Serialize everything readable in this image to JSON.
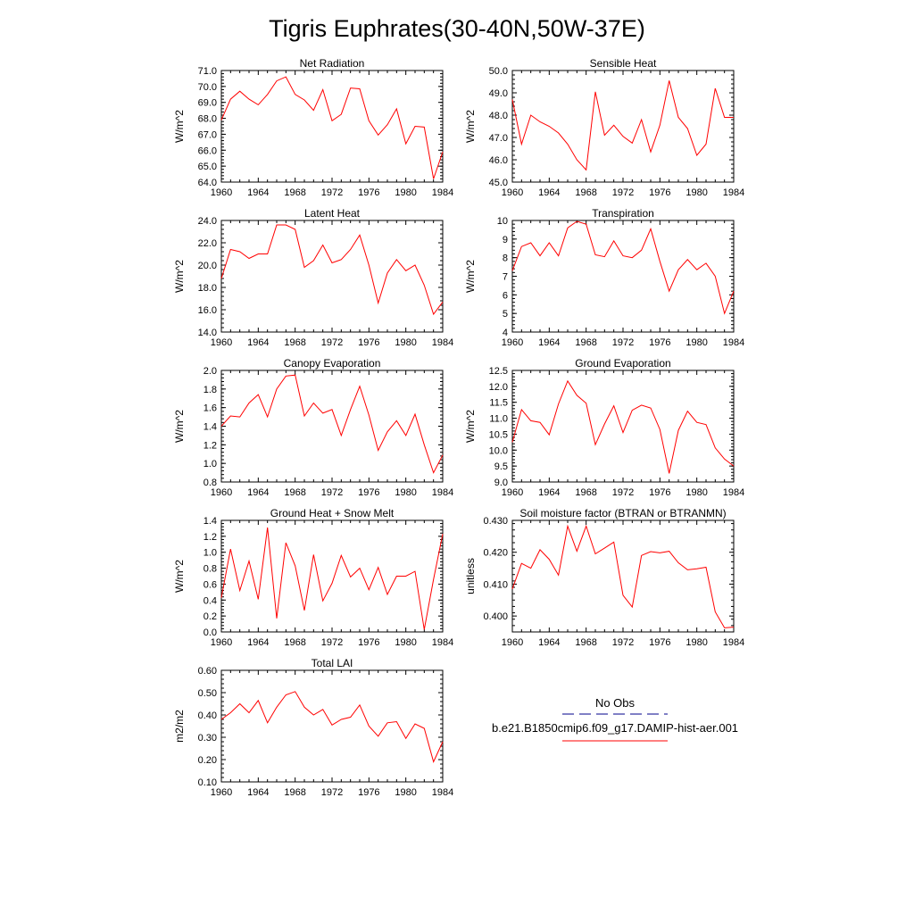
{
  "title": "Tigris Euphrates(30-40N,50W-37E)",
  "colors": {
    "model": "#ff0000",
    "obs": "#00008b",
    "axis": "#000000"
  },
  "legend": {
    "obs_label": "No Obs",
    "model_label": "b.e21.B1850cmip6.f09_g17.DAMIP-hist-aer.001"
  },
  "chart_data": [
    {
      "type": "line",
      "title": "Net Radiation",
      "ylabel": "W/m^2",
      "xlim": [
        1960,
        1984
      ],
      "ylim": [
        64.0,
        71.0
      ],
      "xticks": [
        1960,
        1964,
        1968,
        1972,
        1976,
        1980,
        1984
      ],
      "yticks": [
        "64.0",
        "65.0",
        "66.0",
        "67.0",
        "68.0",
        "69.0",
        "70.0",
        "71.0"
      ],
      "x": [
        1960,
        1961,
        1962,
        1963,
        1964,
        1965,
        1966,
        1967,
        1968,
        1969,
        1970,
        1971,
        1972,
        1973,
        1974,
        1975,
        1976,
        1977,
        1978,
        1979,
        1980,
        1981,
        1982,
        1983,
        1984
      ],
      "values": [
        67.9,
        69.2,
        69.7,
        69.2,
        68.85,
        69.5,
        70.35,
        70.6,
        69.5,
        69.15,
        68.5,
        69.8,
        67.85,
        68.25,
        69.9,
        69.85,
        67.85,
        66.95,
        67.6,
        68.6,
        66.4,
        67.5,
        67.45,
        64.2,
        65.9
      ]
    },
    {
      "type": "line",
      "title": "Sensible Heat",
      "ylabel": "W/m^2",
      "xlim": [
        1960,
        1984
      ],
      "ylim": [
        45.0,
        50.0
      ],
      "xticks": [
        1960,
        1964,
        1968,
        1972,
        1976,
        1980,
        1984
      ],
      "yticks": [
        "45.0",
        "46.0",
        "47.0",
        "48.0",
        "49.0",
        "50.0"
      ],
      "x": [
        1960,
        1961,
        1962,
        1963,
        1964,
        1965,
        1966,
        1967,
        1968,
        1969,
        1970,
        1971,
        1972,
        1973,
        1974,
        1975,
        1976,
        1977,
        1978,
        1979,
        1980,
        1981,
        1982,
        1983,
        1984
      ],
      "values": [
        48.7,
        46.7,
        48.0,
        47.7,
        47.5,
        47.2,
        46.7,
        46.0,
        45.55,
        49.05,
        47.1,
        47.55,
        47.05,
        46.75,
        47.8,
        46.35,
        47.55,
        49.55,
        47.9,
        47.4,
        46.2,
        46.7,
        49.2,
        47.9,
        47.9
      ]
    },
    {
      "type": "line",
      "title": "Latent Heat",
      "ylabel": "W/m^2",
      "xlim": [
        1960,
        1984
      ],
      "ylim": [
        14.0,
        24.0
      ],
      "xticks": [
        1960,
        1964,
        1968,
        1972,
        1976,
        1980,
        1984
      ],
      "yticks": [
        "14.0",
        "16.0",
        "18.0",
        "20.0",
        "22.0",
        "24.0"
      ],
      "x": [
        1960,
        1961,
        1962,
        1963,
        1964,
        1965,
        1966,
        1967,
        1968,
        1969,
        1970,
        1971,
        1972,
        1973,
        1974,
        1975,
        1976,
        1977,
        1978,
        1979,
        1980,
        1981,
        1982,
        1983,
        1984
      ],
      "values": [
        18.8,
        21.4,
        21.2,
        20.6,
        21.0,
        21.0,
        23.6,
        23.6,
        23.2,
        19.8,
        20.4,
        21.8,
        20.2,
        20.5,
        21.4,
        22.7,
        20.0,
        16.6,
        19.3,
        20.5,
        19.5,
        20.0,
        18.2,
        15.6,
        16.7
      ]
    },
    {
      "type": "line",
      "title": "Transpiration",
      "ylabel": "W/m^2",
      "xlim": [
        1960,
        1984
      ],
      "ylim": [
        4,
        10
      ],
      "xticks": [
        1960,
        1964,
        1968,
        1972,
        1976,
        1980,
        1984
      ],
      "yticks": [
        "4",
        "5",
        "6",
        "7",
        "8",
        "9",
        "10"
      ],
      "x": [
        1960,
        1961,
        1962,
        1963,
        1964,
        1965,
        1966,
        1967,
        1968,
        1969,
        1970,
        1971,
        1972,
        1973,
        1974,
        1975,
        1976,
        1977,
        1978,
        1979,
        1980,
        1981,
        1982,
        1983,
        1984
      ],
      "values": [
        7.3,
        8.6,
        8.8,
        8.1,
        8.8,
        8.1,
        9.6,
        9.95,
        9.8,
        8.15,
        8.05,
        8.9,
        8.1,
        8.0,
        8.4,
        9.55,
        7.8,
        6.2,
        7.35,
        7.9,
        7.35,
        7.7,
        7.0,
        5.0,
        6.2
      ]
    },
    {
      "type": "line",
      "title": "Canopy Evaporation",
      "ylabel": "W/m^2",
      "xlim": [
        1960,
        1984
      ],
      "ylim": [
        0.8,
        2.0
      ],
      "xticks": [
        1960,
        1964,
        1968,
        1972,
        1976,
        1980,
        1984
      ],
      "yticks": [
        "0.8",
        "1.0",
        "1.2",
        "1.4",
        "1.6",
        "1.8",
        "2.0"
      ],
      "x": [
        1960,
        1961,
        1962,
        1963,
        1964,
        1965,
        1966,
        1967,
        1968,
        1969,
        1970,
        1971,
        1972,
        1973,
        1974,
        1975,
        1976,
        1977,
        1978,
        1979,
        1980,
        1981,
        1982,
        1983,
        1984
      ],
      "values": [
        1.4,
        1.51,
        1.5,
        1.65,
        1.74,
        1.5,
        1.8,
        1.94,
        1.95,
        1.51,
        1.65,
        1.54,
        1.58,
        1.3,
        1.58,
        1.83,
        1.52,
        1.14,
        1.34,
        1.46,
        1.3,
        1.53,
        1.2,
        0.9,
        1.09
      ]
    },
    {
      "type": "line",
      "title": "Ground Evaporation",
      "ylabel": "W/m^2",
      "xlim": [
        1960,
        1984
      ],
      "ylim": [
        9.0,
        12.5
      ],
      "xticks": [
        1960,
        1964,
        1968,
        1972,
        1976,
        1980,
        1984
      ],
      "yticks": [
        "9.0",
        "9.5",
        "10.0",
        "10.5",
        "11.0",
        "11.5",
        "12.0",
        "12.5"
      ],
      "x": [
        1960,
        1961,
        1962,
        1963,
        1964,
        1965,
        1966,
        1967,
        1968,
        1969,
        1970,
        1971,
        1972,
        1973,
        1974,
        1975,
        1976,
        1977,
        1978,
        1979,
        1980,
        1981,
        1982,
        1983,
        1984
      ],
      "values": [
        10.25,
        11.27,
        10.92,
        10.87,
        10.48,
        11.45,
        12.17,
        11.72,
        11.47,
        10.17,
        10.82,
        11.39,
        10.55,
        11.25,
        11.41,
        11.32,
        10.65,
        9.27,
        10.62,
        11.22,
        10.87,
        10.8,
        10.07,
        9.72,
        9.5
      ]
    },
    {
      "type": "line",
      "title": "Ground Heat + Snow Melt",
      "ylabel": "W/m^2",
      "xlim": [
        1960,
        1984
      ],
      "ylim": [
        0.0,
        1.4
      ],
      "xticks": [
        1960,
        1964,
        1968,
        1972,
        1976,
        1980,
        1984
      ],
      "yticks": [
        "0.0",
        "0.2",
        "0.4",
        "0.6",
        "0.8",
        "1.0",
        "1.2",
        "1.4"
      ],
      "x": [
        1960,
        1961,
        1962,
        1963,
        1964,
        1965,
        1966,
        1967,
        1968,
        1969,
        1970,
        1971,
        1972,
        1973,
        1974,
        1975,
        1976,
        1977,
        1978,
        1979,
        1980,
        1981,
        1982,
        1983,
        1984
      ],
      "values": [
        0.43,
        1.04,
        0.52,
        0.89,
        0.41,
        1.31,
        0.17,
        1.12,
        0.83,
        0.27,
        0.97,
        0.39,
        0.61,
        0.96,
        0.69,
        0.8,
        0.53,
        0.81,
        0.47,
        0.7,
        0.7,
        0.76,
        0.03,
        0.66,
        1.23
      ]
    },
    {
      "type": "line",
      "title": "Soil moisture factor (BTRAN or BTRANMN)",
      "ylabel": "unitless",
      "xlim": [
        1960,
        1984
      ],
      "ylim": [
        0.395,
        0.43
      ],
      "xticks": [
        1960,
        1964,
        1968,
        1972,
        1976,
        1980,
        1984
      ],
      "yticks": [
        "0.400",
        "0.410",
        "0.420",
        "0.430"
      ],
      "ytick_values": [
        0.4,
        0.41,
        0.42,
        0.43
      ],
      "x": [
        1960,
        1961,
        1962,
        1963,
        1964,
        1965,
        1966,
        1967,
        1968,
        1969,
        1970,
        1971,
        1972,
        1973,
        1974,
        1975,
        1976,
        1977,
        1978,
        1979,
        1980,
        1981,
        1982,
        1983,
        1984
      ],
      "values": [
        0.4085,
        0.4165,
        0.415,
        0.4208,
        0.4178,
        0.4128,
        0.4282,
        0.4203,
        0.4282,
        0.4195,
        0.4213,
        0.4232,
        0.4065,
        0.4028,
        0.419,
        0.4202,
        0.4198,
        0.4203,
        0.4167,
        0.4145,
        0.4148,
        0.4153,
        0.4013,
        0.3963,
        0.3965
      ]
    },
    {
      "type": "line",
      "title": "Total LAI",
      "ylabel": "m2/m2",
      "xlim": [
        1960,
        1984
      ],
      "ylim": [
        0.1,
        0.6
      ],
      "xticks": [
        1960,
        1964,
        1968,
        1972,
        1976,
        1980,
        1984
      ],
      "yticks": [
        "0.10",
        "0.20",
        "0.30",
        "0.40",
        "0.50",
        "0.60"
      ],
      "x": [
        1960,
        1961,
        1962,
        1963,
        1964,
        1965,
        1966,
        1967,
        1968,
        1969,
        1970,
        1971,
        1972,
        1973,
        1974,
        1975,
        1976,
        1977,
        1978,
        1979,
        1980,
        1981,
        1982,
        1983,
        1984
      ],
      "values": [
        0.38,
        0.41,
        0.45,
        0.41,
        0.465,
        0.365,
        0.435,
        0.49,
        0.505,
        0.435,
        0.4,
        0.425,
        0.355,
        0.38,
        0.39,
        0.445,
        0.35,
        0.305,
        0.365,
        0.37,
        0.295,
        0.36,
        0.34,
        0.19,
        0.28
      ]
    }
  ]
}
